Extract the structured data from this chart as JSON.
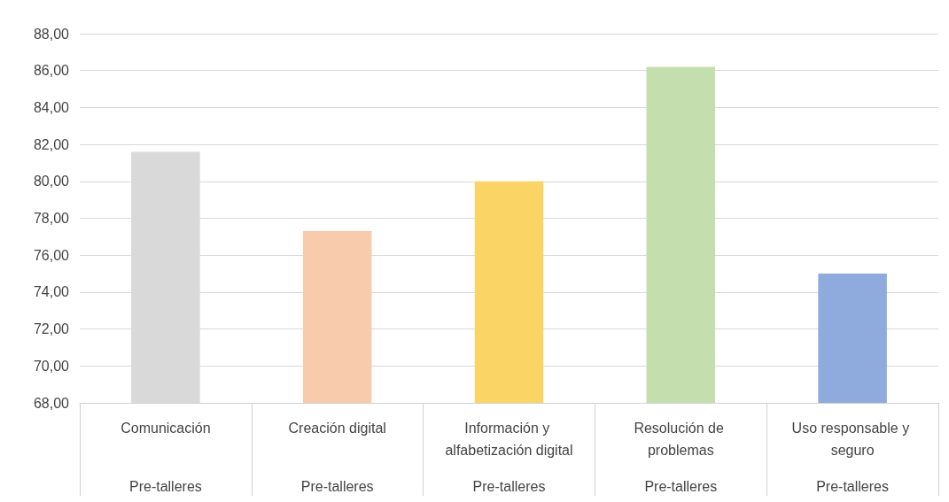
{
  "chart_data": {
    "type": "bar",
    "categories": [
      "Comunicación",
      "Creación digital",
      "Información y alfabetización digital",
      "Resolución de problemas",
      "Uso responsable y seguro"
    ],
    "series": [
      {
        "name": "Pre-talleres",
        "values": [
          81.6,
          77.3,
          80.0,
          86.2,
          75.0
        ],
        "colors": [
          "#d9d9d9",
          "#f7cbac",
          "#fad566",
          "#c4dfad",
          "#8faadc"
        ]
      }
    ],
    "ylim": [
      68,
      88
    ],
    "yticks": [
      {
        "value": 68,
        "label": "68,00"
      },
      {
        "value": 70,
        "label": "70,00"
      },
      {
        "value": 72,
        "label": "72,00"
      },
      {
        "value": 74,
        "label": "74,00"
      },
      {
        "value": 76,
        "label": "76,00"
      },
      {
        "value": 78,
        "label": "78,00"
      },
      {
        "value": 80,
        "label": "80,00"
      },
      {
        "value": 82,
        "label": "82,00"
      },
      {
        "value": 84,
        "label": "84,00"
      },
      {
        "value": 86,
        "label": "86,00"
      },
      {
        "value": 88,
        "label": "88,00"
      }
    ],
    "grid": "y"
  }
}
